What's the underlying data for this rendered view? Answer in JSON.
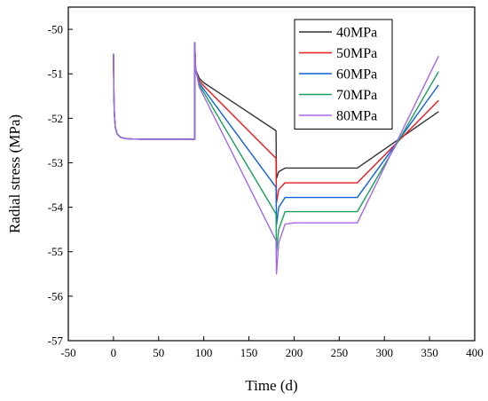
{
  "chart_data": {
    "type": "line",
    "title": "",
    "xlabel": "Time (d)",
    "ylabel": "Radial stress (MPa)",
    "xlim": [
      -50,
      400
    ],
    "ylim": [
      -57,
      -49.5
    ],
    "xticks": [
      -50,
      0,
      50,
      100,
      150,
      200,
      250,
      300,
      350,
      400
    ],
    "yticks": [
      -57,
      -56,
      -55,
      -54,
      -53,
      -52,
      -51,
      -50
    ],
    "grid": false,
    "legend_position": "top-right",
    "series": [
      {
        "name": "40MPa",
        "color": "#333333",
        "points": [
          [
            0,
            -50.55
          ],
          [
            0.5,
            -51.5
          ],
          [
            1,
            -51.9
          ],
          [
            2,
            -52.2
          ],
          [
            4,
            -52.35
          ],
          [
            8,
            -52.43
          ],
          [
            15,
            -52.46
          ],
          [
            30,
            -52.47
          ],
          [
            60,
            -52.47
          ],
          [
            90,
            -52.47
          ],
          [
            90,
            -50.3
          ],
          [
            91,
            -50.9
          ],
          [
            95,
            -51.1
          ],
          [
            100,
            -51.2
          ],
          [
            180,
            -52.28
          ],
          [
            180.5,
            -53.35
          ],
          [
            183,
            -53.2
          ],
          [
            190,
            -53.12
          ],
          [
            200,
            -53.12
          ],
          [
            270,
            -53.12
          ],
          [
            360,
            -51.85
          ]
        ]
      },
      {
        "name": "50MPa",
        "color": "#e8191c",
        "points": [
          [
            0,
            -50.55
          ],
          [
            0.5,
            -51.5
          ],
          [
            1,
            -51.9
          ],
          [
            2,
            -52.2
          ],
          [
            4,
            -52.35
          ],
          [
            8,
            -52.43
          ],
          [
            15,
            -52.46
          ],
          [
            30,
            -52.47
          ],
          [
            60,
            -52.47
          ],
          [
            90,
            -52.47
          ],
          [
            90,
            -50.3
          ],
          [
            91,
            -50.9
          ],
          [
            95,
            -51.15
          ],
          [
            100,
            -51.27
          ],
          [
            180,
            -52.9
          ],
          [
            180.5,
            -53.9
          ],
          [
            183,
            -53.6
          ],
          [
            190,
            -53.45
          ],
          [
            200,
            -53.45
          ],
          [
            270,
            -53.45
          ],
          [
            360,
            -51.6
          ]
        ]
      },
      {
        "name": "60MPa",
        "color": "#1060d6",
        "points": [
          [
            0,
            -50.55
          ],
          [
            0.5,
            -51.5
          ],
          [
            1,
            -51.9
          ],
          [
            2,
            -52.2
          ],
          [
            4,
            -52.35
          ],
          [
            8,
            -52.43
          ],
          [
            15,
            -52.46
          ],
          [
            30,
            -52.47
          ],
          [
            60,
            -52.47
          ],
          [
            90,
            -52.47
          ],
          [
            90,
            -50.3
          ],
          [
            91,
            -50.9
          ],
          [
            95,
            -51.2
          ],
          [
            100,
            -51.35
          ],
          [
            180,
            -53.55
          ],
          [
            180.5,
            -54.4
          ],
          [
            183,
            -54.0
          ],
          [
            190,
            -53.78
          ],
          [
            200,
            -53.78
          ],
          [
            270,
            -53.78
          ],
          [
            360,
            -51.25
          ]
        ]
      },
      {
        "name": "70MPa",
        "color": "#1aa05a",
        "points": [
          [
            0,
            -50.55
          ],
          [
            0.5,
            -51.5
          ],
          [
            1,
            -51.9
          ],
          [
            2,
            -52.2
          ],
          [
            4,
            -52.35
          ],
          [
            8,
            -52.43
          ],
          [
            15,
            -52.46
          ],
          [
            30,
            -52.47
          ],
          [
            60,
            -52.47
          ],
          [
            90,
            -52.47
          ],
          [
            90,
            -50.3
          ],
          [
            91,
            -50.9
          ],
          [
            95,
            -51.25
          ],
          [
            100,
            -51.42
          ],
          [
            180,
            -54.15
          ],
          [
            180.5,
            -55.0
          ],
          [
            183,
            -54.5
          ],
          [
            190,
            -54.1
          ],
          [
            200,
            -54.1
          ],
          [
            270,
            -54.1
          ],
          [
            360,
            -50.95
          ]
        ]
      },
      {
        "name": "80MPa",
        "color": "#a566e8",
        "points": [
          [
            0,
            -50.55
          ],
          [
            0.5,
            -51.5
          ],
          [
            1,
            -51.9
          ],
          [
            2,
            -52.2
          ],
          [
            4,
            -52.35
          ],
          [
            8,
            -52.43
          ],
          [
            15,
            -52.46
          ],
          [
            30,
            -52.47
          ],
          [
            60,
            -52.47
          ],
          [
            90,
            -52.47
          ],
          [
            90,
            -50.3
          ],
          [
            91,
            -50.9
          ],
          [
            95,
            -51.3
          ],
          [
            100,
            -51.5
          ],
          [
            180,
            -54.75
          ],
          [
            180.5,
            -55.5
          ],
          [
            183,
            -54.8
          ],
          [
            190,
            -54.38
          ],
          [
            200,
            -54.35
          ],
          [
            270,
            -54.35
          ],
          [
            360,
            -50.6
          ]
        ]
      }
    ]
  }
}
